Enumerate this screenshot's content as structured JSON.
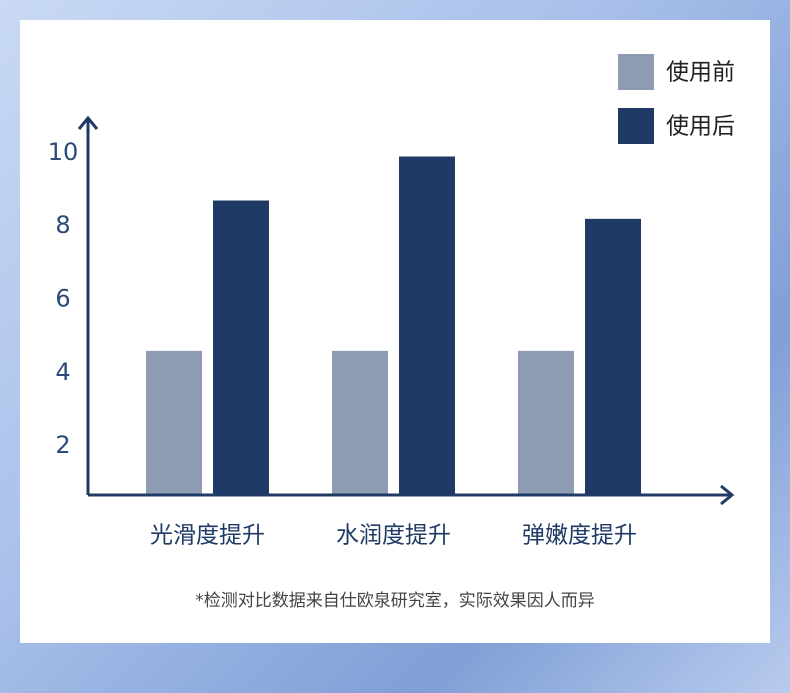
{
  "chart_data": {
    "type": "bar",
    "categories": [
      "光滑度提升",
      "水润度提升",
      "弹嫩度提升"
    ],
    "series": [
      {
        "name": "使用前",
        "color": "#8e9cb3",
        "values": [
          4.6,
          4.6,
          4.6
        ]
      },
      {
        "name": "使用后",
        "color": "#1f3a64",
        "values": [
          8.7,
          9.9,
          8.2
        ]
      }
    ],
    "ylim": [
      0.67,
      10.95
    ],
    "yticks": [
      2,
      4,
      6,
      8,
      10
    ],
    "note": "*检测对比数据来自仕欧泉研究室，实际效果因人而异"
  }
}
